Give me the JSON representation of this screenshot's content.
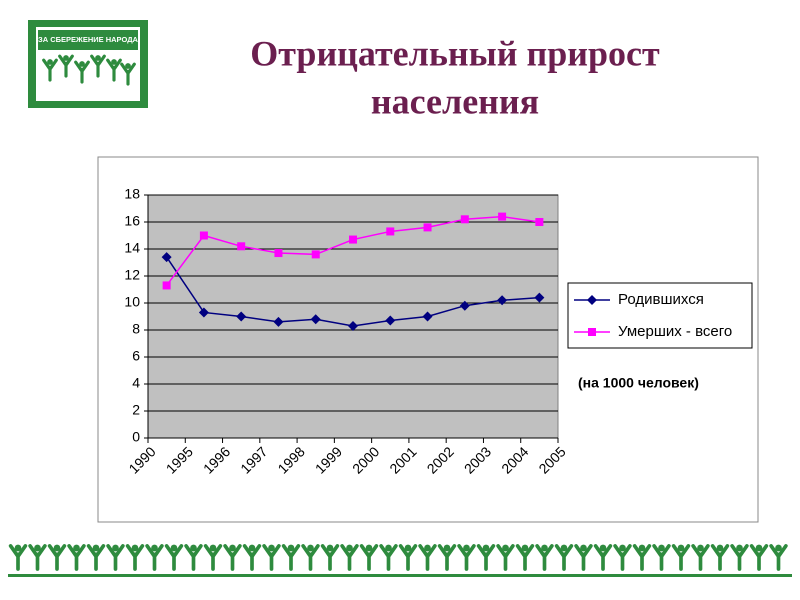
{
  "logo_text": "ЗА СБЕРЕЖЕНИЕ НАРОДА",
  "chart_data": {
    "type": "line",
    "title": [
      "Отрицательный прирост",
      "населения"
    ],
    "categories": [
      "1990",
      "1995",
      "1996",
      "1997",
      "1998",
      "1999",
      "2000",
      "2001",
      "2002",
      "2003",
      "2004",
      "2005"
    ],
    "series": [
      {
        "name": "Родившихся",
        "color": "#000080",
        "marker": "diamond",
        "values": [
          13.4,
          9.3,
          9.0,
          8.6,
          8.8,
          8.3,
          8.7,
          9.0,
          9.8,
          10.2,
          10.4,
          null
        ]
      },
      {
        "name": "Умерших - всего",
        "color": "#ff00ff",
        "marker": "square",
        "values": [
          11.3,
          15.0,
          14.2,
          13.7,
          13.6,
          14.7,
          15.3,
          15.6,
          16.2,
          16.4,
          16.0,
          null
        ]
      }
    ],
    "ylim": [
      0,
      18
    ],
    "yticks": [
      0,
      2,
      4,
      6,
      8,
      10,
      12,
      14,
      16,
      18
    ],
    "grid": true,
    "legend": "right",
    "annotation": "(на 1000 человек)"
  }
}
